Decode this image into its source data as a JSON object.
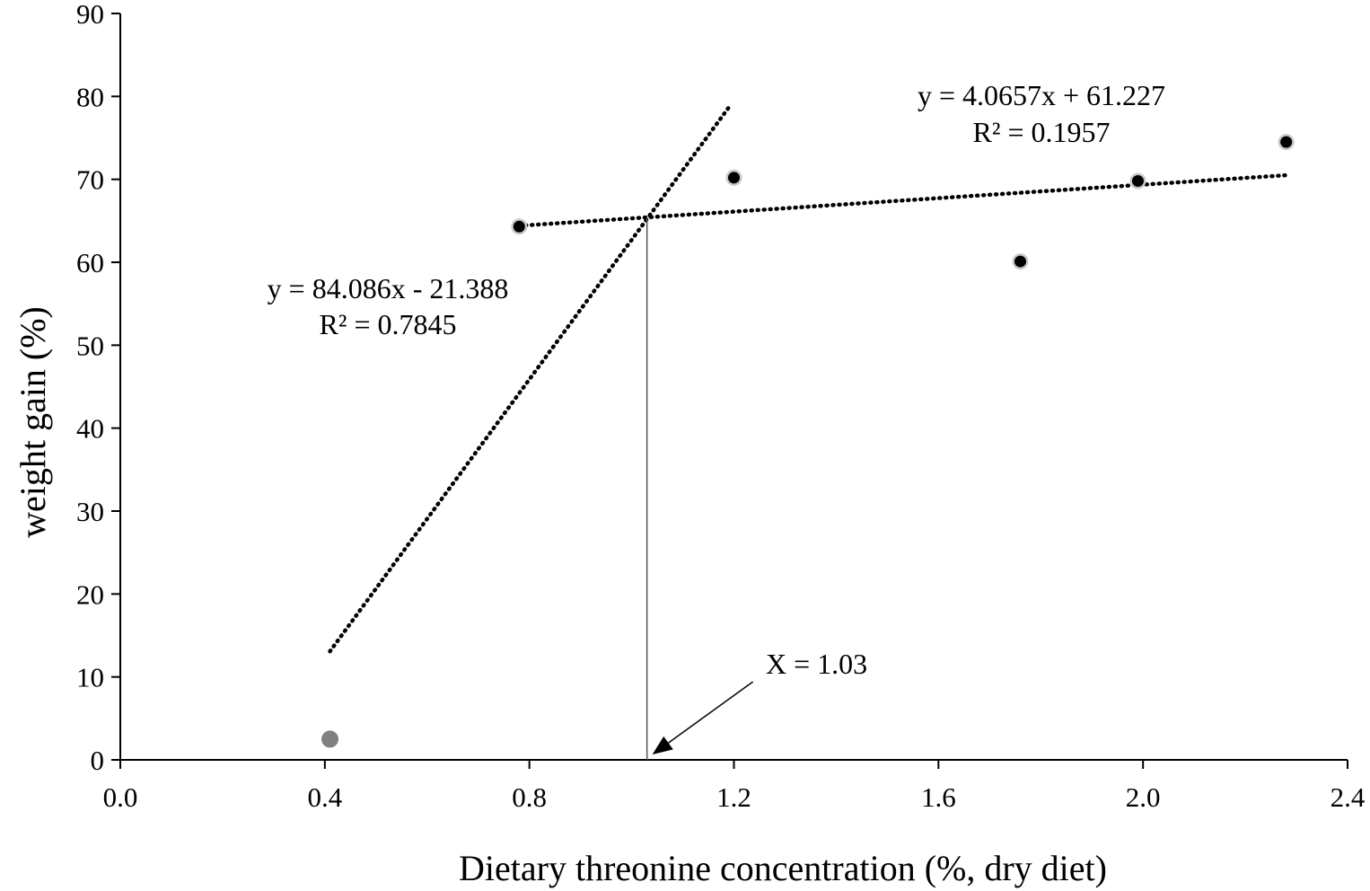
{
  "chart_data": {
    "type": "scatter",
    "xlabel": "Dietary threonine concentration (%, dry diet)",
    "ylabel": "weight gain (%)",
    "xlim": [
      0.0,
      2.4
    ],
    "ylim": [
      0,
      90
    ],
    "xticks": [
      0.0,
      0.4,
      0.8,
      1.2,
      1.6,
      2.0,
      2.4
    ],
    "xtick_labels": [
      "0.0",
      "0.4",
      "0.8",
      "1.2",
      "1.6",
      "2.0",
      "2.4"
    ],
    "yticks": [
      0,
      10,
      20,
      30,
      40,
      50,
      60,
      70,
      80,
      90
    ],
    "ytick_labels": [
      "0",
      "10",
      "20",
      "30",
      "40",
      "50",
      "60",
      "70",
      "80",
      "90"
    ],
    "grid": false,
    "points": [
      {
        "x": 0.41,
        "y": 2.5,
        "color": "#808080"
      },
      {
        "x": 0.78,
        "y": 64.3,
        "color": "#000000"
      },
      {
        "x": 1.2,
        "y": 70.2,
        "color": "#000000"
      },
      {
        "x": 1.76,
        "y": 60.1,
        "color": "#000000"
      },
      {
        "x": 1.99,
        "y": 69.8,
        "color": "#000000"
      },
      {
        "x": 2.28,
        "y": 74.5,
        "color": "#000000"
      }
    ],
    "trendlines": [
      {
        "x_start": 0.41,
        "x_end": 1.19,
        "slope": 84.086,
        "intercept": -21.388,
        "equation": "y = 84.086x - 21.388",
        "r2": "R² = 0.7845"
      },
      {
        "x_start": 0.78,
        "x_end": 2.28,
        "slope": 4.0657,
        "intercept": 61.227,
        "equation": "y = 4.0657x + 61.227",
        "r2": "R² = 0.1957"
      }
    ],
    "breakpoint": {
      "x": 1.03,
      "y": 65.4,
      "label": "X = 1.03"
    }
  }
}
